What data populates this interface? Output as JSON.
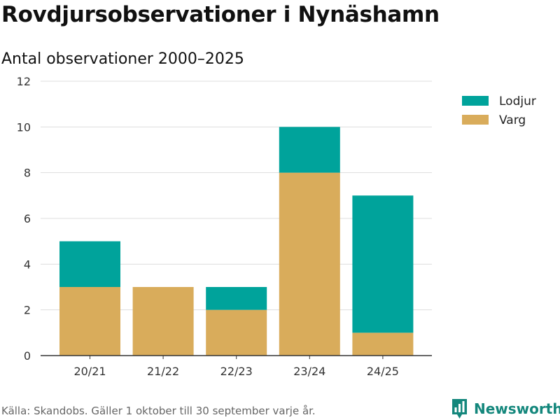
{
  "header": {
    "title": "Rovdjursobservationer i Nynäshamn",
    "subtitle": "Antal observationer 2000–2025"
  },
  "footer": {
    "source": "Källa: Skandobs. Gäller 1 oktober till 30 september varje år.",
    "brand": "Newsworthy"
  },
  "colors": {
    "lodjur": "#00a39b",
    "varg": "#d9ac5b",
    "grid": "#dddddd",
    "axis": "#333333",
    "brand": "#14877c"
  },
  "chart_data": {
    "type": "bar",
    "stacked": true,
    "title": "Rovdjursobservationer i Nynäshamn",
    "subtitle": "Antal observationer 2000–2025",
    "xlabel": "",
    "ylabel": "",
    "categories": [
      "20/21",
      "21/22",
      "22/23",
      "23/24",
      "24/25"
    ],
    "series": [
      {
        "name": "Varg",
        "color": "#d9ac5b",
        "values": [
          3,
          3,
          2,
          8,
          1
        ]
      },
      {
        "name": "Lodjur",
        "color": "#00a39b",
        "values": [
          2,
          0,
          1,
          2,
          6
        ]
      }
    ],
    "ylim": [
      0,
      12
    ],
    "yticks": [
      0,
      2,
      4,
      6,
      8,
      10,
      12
    ],
    "grid": true,
    "legend": {
      "position": "top-right",
      "entries": [
        "Lodjur",
        "Varg"
      ]
    }
  }
}
